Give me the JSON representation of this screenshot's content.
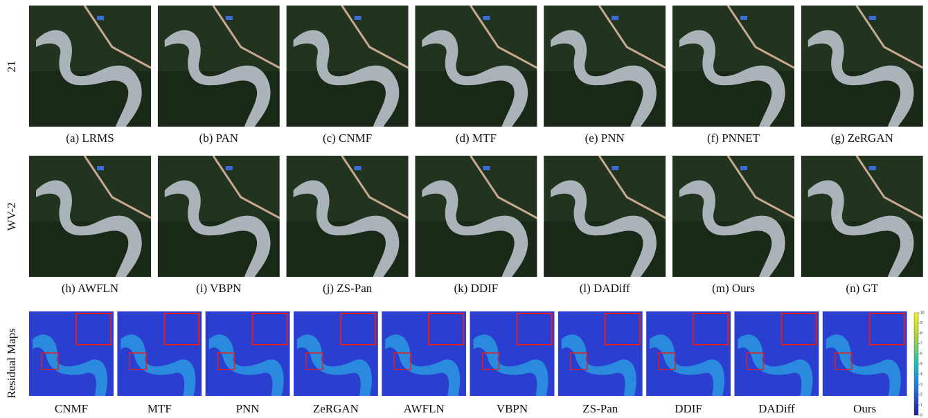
{
  "rows": [
    {
      "label": "21",
      "panels": [
        "(a) LRMS",
        "(b) PAN",
        "(c) CNMF",
        "(d) MTF",
        "(e) PNN",
        "(f) PNNET",
        "(g) ZeRGAN"
      ]
    },
    {
      "label": "WV-2",
      "panels": [
        "(h) AWFLN",
        "(i) VBPN",
        "(j) ZS-Pan",
        "(k) DDIF",
        "(l) DADiff",
        "(m) Ours",
        "(n) GT"
      ]
    }
  ],
  "residual": {
    "label": "Residual Maps",
    "captions": [
      "CNMF",
      "MTF",
      "PNN",
      "ZeRGAN",
      "AWFLN",
      "VBPN",
      "ZS-Pan",
      "DDIF",
      "DADiff",
      "Ours"
    ],
    "colorbar_ticks": [
      0,
      1,
      2,
      3,
      4,
      5,
      6,
      7,
      8,
      9,
      10
    ]
  }
}
